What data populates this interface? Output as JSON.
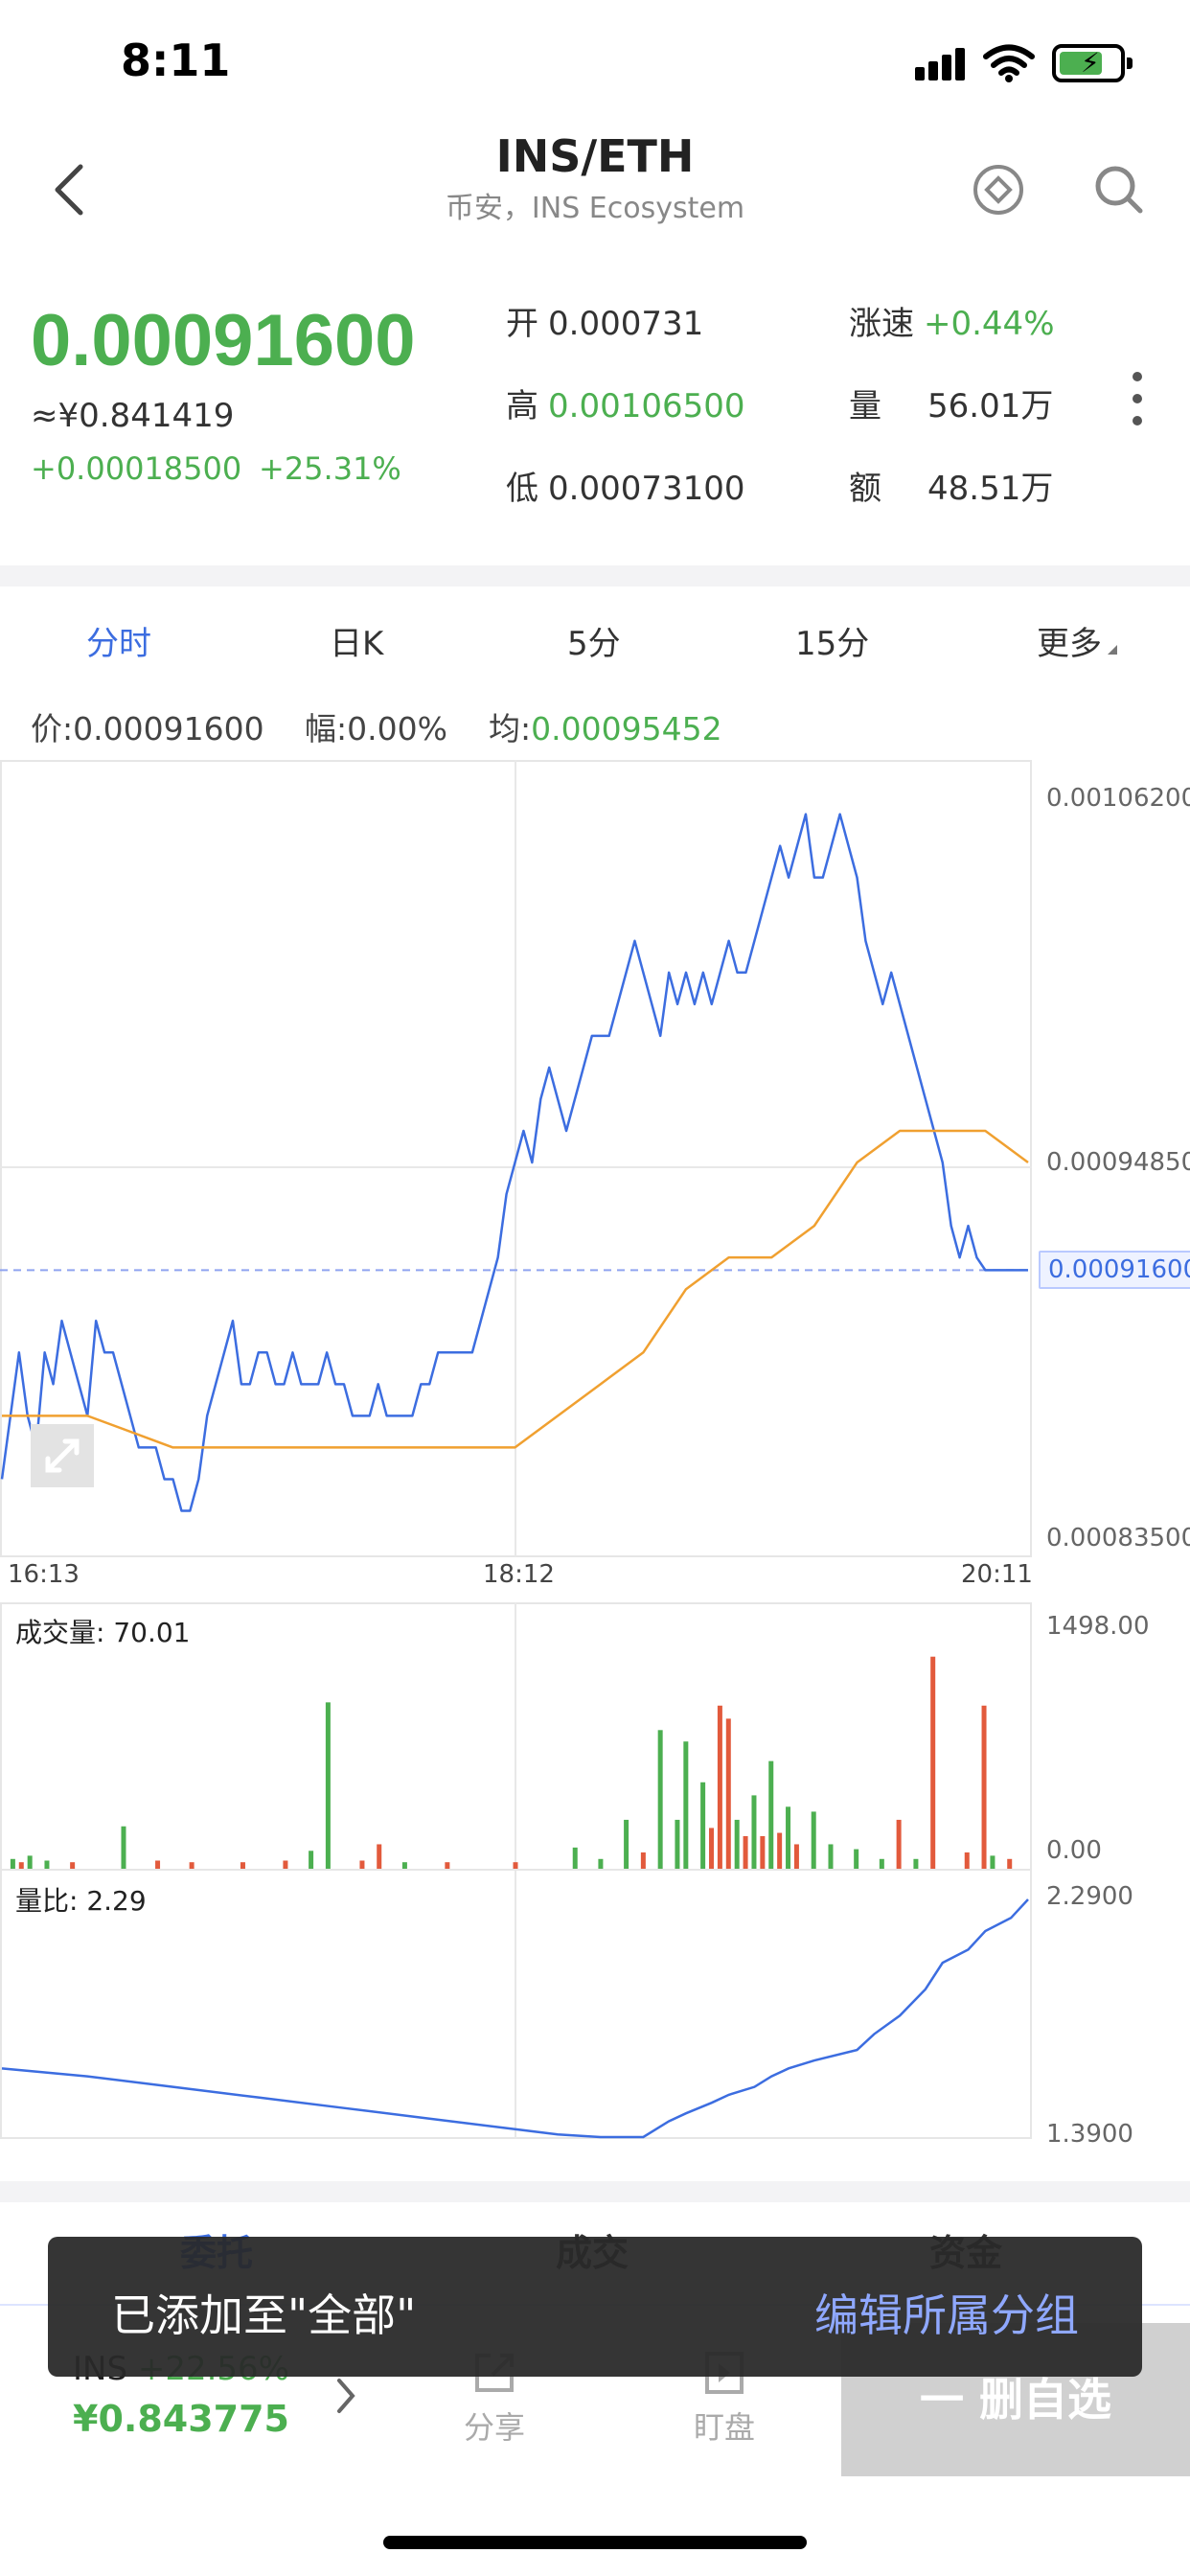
{
  "status_bar": {
    "time": "8:11"
  },
  "header": {
    "title": "INS/ETH",
    "subtitle": "币安，INS Ecosystem"
  },
  "price": {
    "last": "0.00091600",
    "cny": "≈¥0.841419",
    "change": "+0.00018500",
    "change_pct": "+25.31%"
  },
  "stats": {
    "open_label": "开",
    "open": "0.000731",
    "high_label": "高",
    "high": "0.00106500",
    "low_label": "低",
    "low": "0.00073100",
    "speed_label": "涨速",
    "speed": "+0.44%",
    "volume_label": "量",
    "volume": "56.01万",
    "amount_label": "额",
    "amount": "48.51万"
  },
  "timeframes": [
    {
      "label": "分时",
      "active": true
    },
    {
      "label": "日K"
    },
    {
      "label": "5分"
    },
    {
      "label": "15分"
    },
    {
      "label": "更多"
    }
  ],
  "info_line": {
    "price_label": "价:",
    "price": "0.00091600",
    "amp_label": "幅:",
    "amp": "0.00%",
    "avg_label": "均:",
    "avg": "0.00095452"
  },
  "colors": {
    "green": "#4caf50",
    "red": "#e25a3c",
    "blue": "#3c6de0",
    "orange": "#f0a030"
  },
  "chart_data": [
    {
      "type": "line",
      "x_ticks": [
        "16:13",
        "18:12",
        "20:11"
      ],
      "y_ticks": [
        "0.00106200",
        "0.00094850",
        "0.00083500"
      ],
      "ylim": [
        0.000835,
        0.001062
      ],
      "current_label": "0.00091600",
      "current_value": 0.000916,
      "series": [
        {
          "x": [
            0,
            1,
            2,
            3,
            4,
            5,
            6,
            7,
            8,
            9,
            10,
            11,
            12,
            13,
            14,
            15,
            16,
            17,
            18,
            19,
            20,
            21,
            22,
            23,
            24,
            25,
            26,
            27,
            28,
            29,
            30,
            31,
            32,
            33,
            34,
            35,
            36,
            37,
            38,
            39,
            40,
            41,
            42,
            43,
            44,
            45,
            46,
            47,
            48,
            49,
            50,
            51,
            52,
            53,
            54,
            55,
            56,
            57,
            58,
            59,
            60,
            61,
            62,
            63,
            64,
            65,
            66,
            67,
            68,
            69,
            70,
            71,
            72,
            73,
            74,
            75,
            76,
            77,
            78,
            79,
            80,
            81,
            82,
            83,
            84,
            85,
            86,
            87,
            88,
            89,
            90,
            91,
            92,
            93,
            94,
            95,
            96,
            97,
            98,
            99,
            100,
            101,
            102,
            103,
            104,
            105,
            106,
            107,
            108,
            109,
            110,
            111,
            112,
            113,
            114,
            115,
            116,
            117,
            118,
            119,
            120
          ],
          "values": [
            0.00085,
            0.00087,
            0.00089,
            0.00087,
            0.00086,
            0.00089,
            0.00088,
            0.0009,
            0.00089,
            0.00088,
            0.00087,
            0.0009,
            0.00089,
            0.00089,
            0.00088,
            0.00087,
            0.00086,
            0.00086,
            0.00086,
            0.00085,
            0.00085,
            0.00084,
            0.00084,
            0.00085,
            0.00087,
            0.00088,
            0.00089,
            0.0009,
            0.00088,
            0.00088,
            0.00089,
            0.00089,
            0.00088,
            0.00088,
            0.00089,
            0.00088,
            0.00088,
            0.00088,
            0.00089,
            0.00088,
            0.00088,
            0.00087,
            0.00087,
            0.00087,
            0.00088,
            0.00087,
            0.00087,
            0.00087,
            0.00087,
            0.00088,
            0.00088,
            0.00089,
            0.00089,
            0.00089,
            0.00089,
            0.00089,
            0.0009,
            0.00091,
            0.00092,
            0.00094,
            0.00095,
            0.00096,
            0.00095,
            0.00097,
            0.00098,
            0.00097,
            0.00096,
            0.00097,
            0.00098,
            0.00099,
            0.00099,
            0.00099,
            0.001,
            0.00101,
            0.00102,
            0.00101,
            0.001,
            0.00099,
            0.00101,
            0.001,
            0.00101,
            0.001,
            0.00101,
            0.001,
            0.00101,
            0.00102,
            0.00101,
            0.00101,
            0.00102,
            0.00103,
            0.00104,
            0.00105,
            0.00104,
            0.00105,
            0.00106,
            0.00104,
            0.00104,
            0.00105,
            0.00106,
            0.00105,
            0.00104,
            0.00102,
            0.00101,
            0.001,
            0.00101,
            0.001,
            0.00099,
            0.00098,
            0.00097,
            0.00096,
            0.00095,
            0.00093,
            0.00092,
            0.00093,
            0.00092,
            0.000916,
            0.000916,
            0.000916,
            0.000916,
            0.000916,
            0.000916
          ]
        },
        {
          "x": [
            0,
            10,
            20,
            30,
            40,
            50,
            55,
            60,
            65,
            70,
            75,
            80,
            85,
            90,
            95,
            100,
            105,
            110,
            115,
            120
          ],
          "values": [
            0.00087,
            0.00087,
            0.00086,
            0.00086,
            0.00086,
            0.00086,
            0.00086,
            0.00086,
            0.00087,
            0.00088,
            0.00089,
            0.00091,
            0.00092,
            0.00092,
            0.00093,
            0.00095,
            0.00096,
            0.00096,
            0.00096,
            0.00095
          ]
        }
      ]
    },
    {
      "type": "bar",
      "title": "成交量: 70.01",
      "y_ticks": [
        "1498.00",
        "0.00"
      ],
      "ylim": [
        0,
        1498
      ],
      "bars": [
        {
          "x": 1,
          "v": 60,
          "c": "green"
        },
        {
          "x": 2,
          "v": 40,
          "c": "red"
        },
        {
          "x": 3,
          "v": 80,
          "c": "green"
        },
        {
          "x": 5,
          "v": 50,
          "c": "green"
        },
        {
          "x": 8,
          "v": 40,
          "c": "red"
        },
        {
          "x": 14,
          "v": 260,
          "c": "green"
        },
        {
          "x": 18,
          "v": 50,
          "c": "red"
        },
        {
          "x": 22,
          "v": 40,
          "c": "red"
        },
        {
          "x": 28,
          "v": 40,
          "c": "red"
        },
        {
          "x": 33,
          "v": 50,
          "c": "red"
        },
        {
          "x": 36,
          "v": 110,
          "c": "green"
        },
        {
          "x": 38,
          "v": 1020,
          "c": "green"
        },
        {
          "x": 42,
          "v": 50,
          "c": "red"
        },
        {
          "x": 44,
          "v": 150,
          "c": "red"
        },
        {
          "x": 47,
          "v": 40,
          "c": "green"
        },
        {
          "x": 52,
          "v": 40,
          "c": "red"
        },
        {
          "x": 60,
          "v": 40,
          "c": "red"
        },
        {
          "x": 67,
          "v": 130,
          "c": "green"
        },
        {
          "x": 70,
          "v": 60,
          "c": "green"
        },
        {
          "x": 73,
          "v": 300,
          "c": "green"
        },
        {
          "x": 75,
          "v": 100,
          "c": "red"
        },
        {
          "x": 77,
          "v": 850,
          "c": "green"
        },
        {
          "x": 79,
          "v": 300,
          "c": "green"
        },
        {
          "x": 80,
          "v": 780,
          "c": "green"
        },
        {
          "x": 82,
          "v": 530,
          "c": "green"
        },
        {
          "x": 83,
          "v": 250,
          "c": "red"
        },
        {
          "x": 84,
          "v": 1000,
          "c": "red"
        },
        {
          "x": 85,
          "v": 920,
          "c": "red"
        },
        {
          "x": 86,
          "v": 300,
          "c": "green"
        },
        {
          "x": 87,
          "v": 200,
          "c": "red"
        },
        {
          "x": 88,
          "v": 450,
          "c": "green"
        },
        {
          "x": 89,
          "v": 200,
          "c": "red"
        },
        {
          "x": 90,
          "v": 660,
          "c": "green"
        },
        {
          "x": 91,
          "v": 220,
          "c": "red"
        },
        {
          "x": 92,
          "v": 380,
          "c": "green"
        },
        {
          "x": 93,
          "v": 150,
          "c": "red"
        },
        {
          "x": 95,
          "v": 350,
          "c": "green"
        },
        {
          "x": 97,
          "v": 150,
          "c": "green"
        },
        {
          "x": 100,
          "v": 120,
          "c": "green"
        },
        {
          "x": 103,
          "v": 60,
          "c": "green"
        },
        {
          "x": 105,
          "v": 300,
          "c": "red"
        },
        {
          "x": 107,
          "v": 60,
          "c": "green"
        },
        {
          "x": 109,
          "v": 1300,
          "c": "red"
        },
        {
          "x": 113,
          "v": 100,
          "c": "red"
        },
        {
          "x": 115,
          "v": 1000,
          "c": "red"
        },
        {
          "x": 116,
          "v": 80,
          "c": "green"
        },
        {
          "x": 118,
          "v": 60,
          "c": "red"
        }
      ]
    },
    {
      "type": "line",
      "title": "量比: 2.29",
      "y_ticks": [
        "2.2900",
        "1.3900"
      ],
      "ylim": [
        1.39,
        2.29
      ],
      "x": [
        0,
        10,
        20,
        30,
        40,
        50,
        60,
        65,
        70,
        75,
        78,
        80,
        83,
        85,
        88,
        90,
        92,
        95,
        100,
        102,
        105,
        108,
        110,
        113,
        115,
        118,
        120
      ],
      "values": [
        1.65,
        1.62,
        1.58,
        1.54,
        1.5,
        1.46,
        1.42,
        1.4,
        1.39,
        1.39,
        1.45,
        1.48,
        1.52,
        1.55,
        1.58,
        1.62,
        1.65,
        1.68,
        1.72,
        1.78,
        1.85,
        1.95,
        2.05,
        2.1,
        2.17,
        2.22,
        2.29
      ]
    }
  ],
  "bottom_tabs": [
    {
      "label": "委托",
      "active": true
    },
    {
      "label": "成交"
    },
    {
      "label": "资金"
    }
  ],
  "bottom_bar": {
    "symbol": "INS",
    "symbol_change": "+22.56%",
    "symbol_price": "¥0.843775",
    "share_label": "分享",
    "watch_label": "盯盘",
    "remove_label": "一 删自选"
  },
  "toast": {
    "message": "已添加至\"全部\"",
    "action": "编辑所属分组"
  }
}
